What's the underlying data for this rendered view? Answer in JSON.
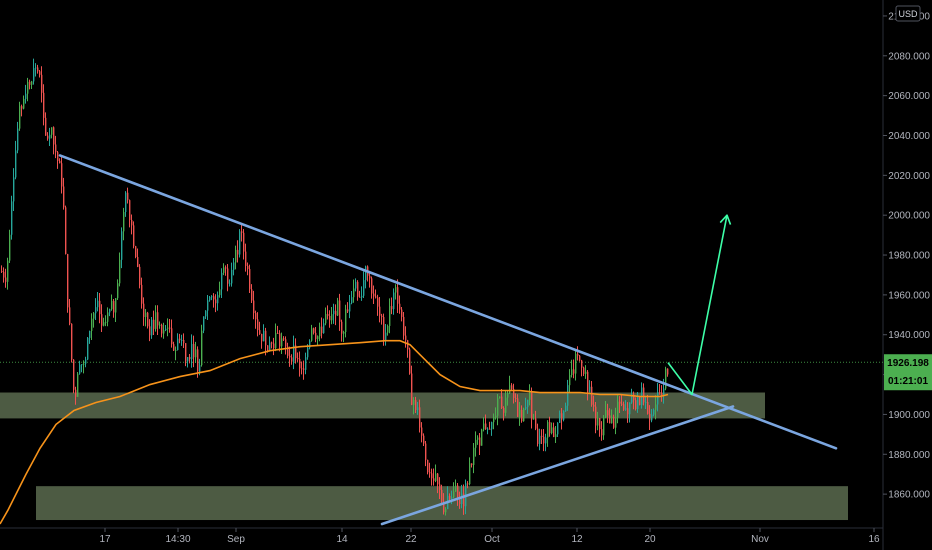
{
  "chart_data": {
    "type": "candlestick",
    "currency": "USD",
    "y_axis": {
      "ticks": [
        "2100.000",
        "2080.000",
        "2060.000",
        "2040.000",
        "2020.000",
        "2000.000",
        "1980.000",
        "1960.000",
        "1940.000",
        "1920.000",
        "1900.000",
        "1880.000",
        "1860.000"
      ],
      "tick_values": [
        2100,
        2080,
        2060,
        2040,
        2020,
        2000,
        1980,
        1960,
        1940,
        1920,
        1900,
        1880,
        1860
      ],
      "ylim": [
        1843,
        2108
      ]
    },
    "x_axis": {
      "ticks": [
        "17",
        "14:30",
        "Sep",
        "14",
        "22",
        "Oct",
        "12",
        "20",
        "Nov",
        "16"
      ]
    },
    "last_price": {
      "value": "1926.198",
      "numeric": 1926.198,
      "countdown": "01:21:01"
    },
    "colors": {
      "up": "#26a69a",
      "up_bright": "#4caf50",
      "down": "#ef5350",
      "moving_average": "#f7931a",
      "trendline": "#7ba6e0",
      "projection": "#3dffa8",
      "zone": "#5a6b4f",
      "badge": "#4caf50",
      "price_line": "#4caf50"
    },
    "price_path": [
      [
        0,
        1972
      ],
      [
        6,
        1970
      ],
      [
        12,
        2018
      ],
      [
        18,
        2048
      ],
      [
        24,
        2062
      ],
      [
        30,
        2070
      ],
      [
        36,
        2075
      ],
      [
        40,
        2066
      ],
      [
        44,
        2038
      ],
      [
        50,
        2042
      ],
      [
        56,
        2030
      ],
      [
        62,
        2015
      ],
      [
        66,
        1965
      ],
      [
        70,
        1935
      ],
      [
        74,
        1905
      ],
      [
        78,
        1930
      ],
      [
        84,
        1922
      ],
      [
        90,
        1948
      ],
      [
        96,
        1955
      ],
      [
        102,
        1942
      ],
      [
        108,
        1950
      ],
      [
        114,
        1955
      ],
      [
        120,
        1985
      ],
      [
        125,
        2015
      ],
      [
        132,
        1992
      ],
      [
        138,
        1968
      ],
      [
        144,
        1948
      ],
      [
        150,
        1942
      ],
      [
        156,
        1950
      ],
      [
        162,
        1938
      ],
      [
        168,
        1946
      ],
      [
        174,
        1932
      ],
      [
        180,
        1942
      ],
      [
        186,
        1928
      ],
      [
        192,
        1935
      ],
      [
        198,
        1924
      ],
      [
        204,
        1952
      ],
      [
        210,
        1962
      ],
      [
        216,
        1955
      ],
      [
        222,
        1975
      ],
      [
        228,
        1968
      ],
      [
        234,
        1978
      ],
      [
        240,
        1990
      ],
      [
        246,
        1975
      ],
      [
        252,
        1958
      ],
      [
        258,
        1942
      ],
      [
        264,
        1938
      ],
      [
        270,
        1935
      ],
      [
        276,
        1940
      ],
      [
        282,
        1935
      ],
      [
        288,
        1930
      ],
      [
        294,
        1932
      ],
      [
        300,
        1918
      ],
      [
        306,
        1935
      ],
      [
        312,
        1945
      ],
      [
        318,
        1938
      ],
      [
        324,
        1950
      ],
      [
        330,
        1945
      ],
      [
        336,
        1955
      ],
      [
        342,
        1942
      ],
      [
        348,
        1958
      ],
      [
        354,
        1965
      ],
      [
        360,
        1960
      ],
      [
        366,
        1972
      ],
      [
        372,
        1962
      ],
      [
        378,
        1950
      ],
      [
        384,
        1940
      ],
      [
        390,
        1955
      ],
      [
        396,
        1962
      ],
      [
        402,
        1945
      ],
      [
        406,
        1935
      ],
      [
        410,
        1910
      ],
      [
        416,
        1905
      ],
      [
        420,
        1895
      ],
      [
        426,
        1875
      ],
      [
        432,
        1870
      ],
      [
        438,
        1862
      ],
      [
        444,
        1853
      ],
      [
        450,
        1858
      ],
      [
        456,
        1862
      ],
      [
        462,
        1855
      ],
      [
        468,
        1870
      ],
      [
        474,
        1882
      ],
      [
        480,
        1890
      ],
      [
        486,
        1896
      ],
      [
        492,
        1892
      ],
      [
        498,
        1906
      ],
      [
        504,
        1905
      ],
      [
        510,
        1912
      ],
      [
        516,
        1903
      ],
      [
        522,
        1900
      ],
      [
        528,
        1912
      ],
      [
        534,
        1890
      ],
      [
        540,
        1885
      ],
      [
        546,
        1893
      ],
      [
        552,
        1890
      ],
      [
        558,
        1896
      ],
      [
        564,
        1905
      ],
      [
        570,
        1918
      ],
      [
        576,
        1928
      ],
      [
        582,
        1926
      ],
      [
        588,
        1912
      ],
      [
        594,
        1900
      ],
      [
        600,
        1888
      ],
      [
        606,
        1902
      ],
      [
        612,
        1895
      ],
      [
        618,
        1906
      ],
      [
        624,
        1900
      ],
      [
        630,
        1908
      ],
      [
        636,
        1905
      ],
      [
        642,
        1910
      ],
      [
        648,
        1900
      ],
      [
        654,
        1906
      ],
      [
        660,
        1912
      ],
      [
        664,
        1918
      ],
      [
        668,
        1926
      ]
    ],
    "moving_average_path": [
      [
        0,
        1845
      ],
      [
        8,
        1852
      ],
      [
        16,
        1860
      ],
      [
        26,
        1870
      ],
      [
        40,
        1883
      ],
      [
        56,
        1895
      ],
      [
        74,
        1902
      ],
      [
        96,
        1906
      ],
      [
        120,
        1909
      ],
      [
        150,
        1915
      ],
      [
        180,
        1919
      ],
      [
        210,
        1922
      ],
      [
        240,
        1928
      ],
      [
        270,
        1932
      ],
      [
        300,
        1934
      ],
      [
        330,
        1935
      ],
      [
        360,
        1936
      ],
      [
        385,
        1937
      ],
      [
        400,
        1937
      ],
      [
        410,
        1935
      ],
      [
        420,
        1930
      ],
      [
        440,
        1920
      ],
      [
        460,
        1914
      ],
      [
        480,
        1912
      ],
      [
        500,
        1912
      ],
      [
        520,
        1912
      ],
      [
        540,
        1911
      ],
      [
        560,
        1911
      ],
      [
        580,
        1911
      ],
      [
        600,
        1910
      ],
      [
        620,
        1910
      ],
      [
        640,
        1909
      ],
      [
        660,
        1909
      ],
      [
        668,
        1910
      ]
    ],
    "trendlines": [
      {
        "from": [
          60,
          2030
        ],
        "to": [
          836,
          1883
        ]
      },
      {
        "from": [
          382,
          1845
        ],
        "to": [
          733,
          1904
        ]
      }
    ],
    "zones": [
      {
        "x0": 0,
        "x1": 765,
        "y_top": 1911,
        "y_bottom": 1898
      },
      {
        "x0": 36,
        "x1": 848,
        "y_top": 1864,
        "y_bottom": 1847
      }
    ],
    "projection_path": [
      [
        668,
        1926
      ],
      [
        692,
        1910
      ],
      [
        727,
        2000
      ]
    ]
  }
}
